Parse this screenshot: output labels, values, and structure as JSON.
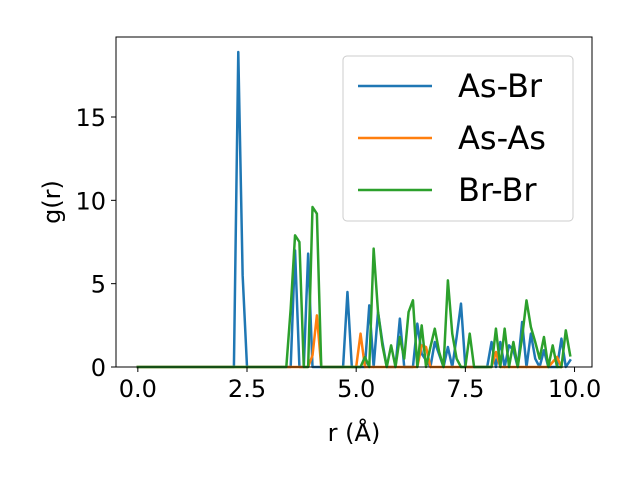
{
  "chart_data": {
    "type": "line",
    "title": "",
    "xlabel": "r (Å)",
    "ylabel": "g(r)",
    "xlim": [
      -0.5,
      10.4
    ],
    "ylim": [
      0,
      19.8
    ],
    "xticks": [
      0.0,
      2.5,
      5.0,
      7.5,
      10.0
    ],
    "xtick_labels": [
      "0.0",
      "2.5",
      "5.0",
      "7.5",
      "10.0"
    ],
    "yticks": [
      0,
      5,
      10,
      15
    ],
    "ytick_labels": [
      "0",
      "5",
      "10",
      "15"
    ],
    "grid": false,
    "legend_position": "top-right",
    "series": [
      {
        "name": "As-Br",
        "color": "#1f77b4",
        "x": [
          0.0,
          2.2,
          2.3,
          2.4,
          2.5,
          3.5,
          3.6,
          3.7,
          3.8,
          3.9,
          4.0,
          4.1,
          4.2,
          4.7,
          4.8,
          4.9,
          5.2,
          5.3,
          5.4,
          5.5,
          5.6,
          5.7,
          5.9,
          6.0,
          6.1,
          6.3,
          6.4,
          6.5,
          6.7,
          6.8,
          7.0,
          7.1,
          7.2,
          7.3,
          7.4,
          7.5,
          7.6,
          8.0,
          8.1,
          8.2,
          8.3,
          8.4,
          8.5,
          8.6,
          8.7,
          8.8,
          8.9,
          9.0,
          9.1,
          9.2,
          9.3,
          9.4,
          9.5,
          9.6,
          9.7,
          9.8,
          9.9
        ],
        "y": [
          0,
          0,
          18.9,
          5.5,
          0,
          0,
          7.0,
          0,
          0,
          6.8,
          0,
          0,
          0,
          0,
          4.5,
          0,
          0,
          3.7,
          0,
          3.3,
          1.5,
          0,
          0,
          2.9,
          0,
          0,
          2.6,
          0.8,
          0,
          1.5,
          0,
          1.2,
          0,
          1.8,
          3.8,
          0,
          0,
          0,
          1.5,
          0,
          1.5,
          0,
          1.3,
          1.0,
          0,
          2.7,
          0,
          2.0,
          0.5,
          0,
          1.0,
          0,
          0,
          0,
          1.7,
          0,
          0.4
        ]
      },
      {
        "name": "As-As",
        "color": "#ff7f0e",
        "x": [
          0.0,
          3.9,
          4.0,
          4.1,
          4.2,
          5.0,
          5.1,
          5.2,
          6.4,
          6.5,
          6.6,
          6.7,
          8.1,
          8.2,
          8.3,
          9.4,
          9.5,
          9.6,
          9.7
        ],
        "y": [
          0,
          0,
          0.7,
          3.1,
          0,
          0,
          2.0,
          0,
          0,
          1.3,
          1.2,
          0,
          0,
          0.9,
          0,
          0,
          0.3,
          0.6,
          0
        ]
      },
      {
        "name": "Br-Br",
        "color": "#2ca02c",
        "x": [
          0.0,
          3.4,
          3.5,
          3.6,
          3.7,
          3.8,
          3.9,
          4.0,
          4.1,
          4.2,
          5.1,
          5.2,
          5.3,
          5.4,
          5.5,
          5.6,
          5.7,
          5.8,
          5.9,
          6.0,
          6.1,
          6.2,
          6.3,
          6.4,
          6.5,
          6.6,
          6.7,
          6.8,
          6.9,
          7.0,
          7.1,
          7.2,
          7.3,
          7.4,
          7.5,
          7.6,
          7.7,
          7.8,
          7.9,
          8.0,
          8.1,
          8.2,
          8.3,
          8.4,
          8.5,
          8.6,
          8.7,
          8.8,
          8.9,
          9.0,
          9.1,
          9.2,
          9.3,
          9.4,
          9.5,
          9.6,
          9.7,
          9.8,
          9.9
        ],
        "y": [
          0,
          0,
          3.5,
          7.9,
          7.5,
          0,
          0,
          9.6,
          9.2,
          0,
          0,
          0.6,
          0,
          7.1,
          3.3,
          1.3,
          0,
          1.3,
          0,
          1.8,
          0.5,
          3.3,
          4.0,
          0,
          2.5,
          0,
          1.2,
          2.3,
          0.9,
          0,
          5.2,
          2.0,
          0.5,
          0,
          0,
          2.0,
          0,
          0,
          0,
          0,
          0,
          2.3,
          0,
          2.3,
          0,
          1.5,
          0,
          1.8,
          4.0,
          2.4,
          1.5,
          0.5,
          1.8,
          0,
          1.3,
          0,
          0,
          2.2,
          0.7
        ]
      }
    ]
  }
}
